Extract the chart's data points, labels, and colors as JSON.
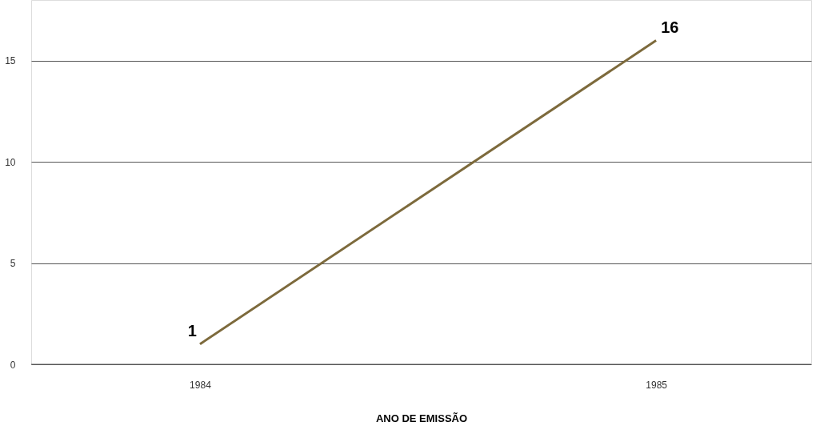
{
  "chart_data": {
    "type": "line",
    "xlabel": "ANO DE EMISSÃO",
    "categories": [
      "1984",
      "1985"
    ],
    "series": [
      {
        "color": "#7d6a3c",
        "values": [
          1,
          16
        ]
      }
    ],
    "ylim": [
      0,
      18
    ],
    "yticks": [
      0,
      5,
      10,
      15
    ],
    "grid": "y",
    "data_labels": true,
    "legend": false,
    "marker": "none"
  }
}
